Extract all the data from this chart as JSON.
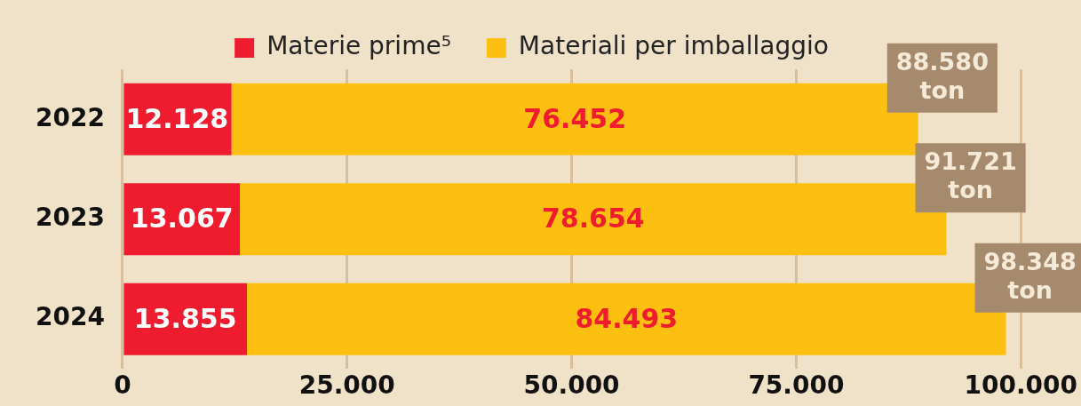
{
  "chart_data": {
    "type": "bar",
    "orientation": "horizontal",
    "stacked": true,
    "categories": [
      "2022",
      "2023",
      "2024"
    ],
    "series": [
      {
        "name": "Materie prime⁵",
        "color": "#ee1c2e",
        "values": [
          12128,
          13067,
          13855
        ],
        "value_labels": [
          "12.128",
          "13.067",
          "13.855"
        ]
      },
      {
        "name": "Materiali per imballaggio",
        "color": "#fdc010",
        "values": [
          76452,
          78654,
          84493
        ],
        "value_labels": [
          "76.452",
          "78.654",
          "84.493"
        ]
      }
    ],
    "totals": [
      "88.580 ton",
      "91.721 ton",
      "98.348 ton"
    ],
    "xlim": [
      0,
      100000
    ],
    "xticks": [
      {
        "value": 0,
        "label": "0"
      },
      {
        "value": 25000,
        "label": "25.000"
      },
      {
        "value": 50000,
        "label": "50.000"
      },
      {
        "value": 75000,
        "label": "75.000"
      },
      {
        "value": 100000,
        "label": "100.000"
      }
    ],
    "grid": "x",
    "legend": "top"
  }
}
